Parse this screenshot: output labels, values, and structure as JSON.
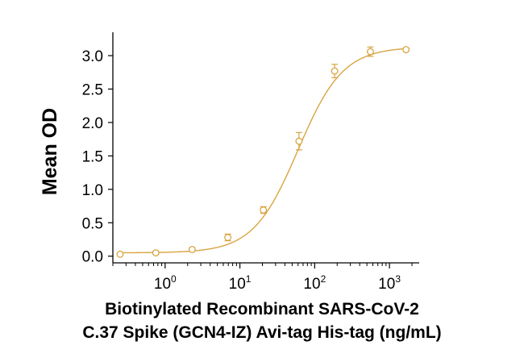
{
  "chart_data": {
    "type": "scatter",
    "title": "",
    "xlabel_lines": [
      "Biotinylated Recombinant SARS-CoV-2",
      "C.37 Spike (GCN4-IZ) Avi-tag His-tag (ng/mL)"
    ],
    "ylabel": "Mean OD",
    "x_scale": "log",
    "xlim": [
      0.2,
      2500
    ],
    "ylim": [
      -0.1,
      3.35
    ],
    "x_ticks": [
      {
        "value": 1,
        "base": "10",
        "exp": "0"
      },
      {
        "value": 10,
        "base": "10",
        "exp": "1"
      },
      {
        "value": 100,
        "base": "10",
        "exp": "2"
      },
      {
        "value": 1000,
        "base": "10",
        "exp": "3"
      }
    ],
    "y_ticks": [
      "0.0",
      "0.5",
      "1.0",
      "1.5",
      "2.0",
      "2.5",
      "3.0"
    ],
    "grid": false,
    "color": "#D9A441",
    "series": [
      {
        "x": [
          0.25,
          0.75,
          2.3,
          6.9,
          20.6,
          61.7,
          185,
          556,
          1667
        ],
        "y": [
          0.03,
          0.05,
          0.1,
          0.28,
          0.69,
          1.72,
          2.77,
          3.06,
          3.09
        ],
        "err": [
          0.02,
          0.02,
          0.02,
          0.05,
          0.05,
          0.13,
          0.1,
          0.07,
          0.02
        ]
      }
    ],
    "fit": {
      "model": "4PL",
      "bottom": 0.05,
      "top": 3.13,
      "ec50": 60,
      "hill": 1.45
    }
  }
}
